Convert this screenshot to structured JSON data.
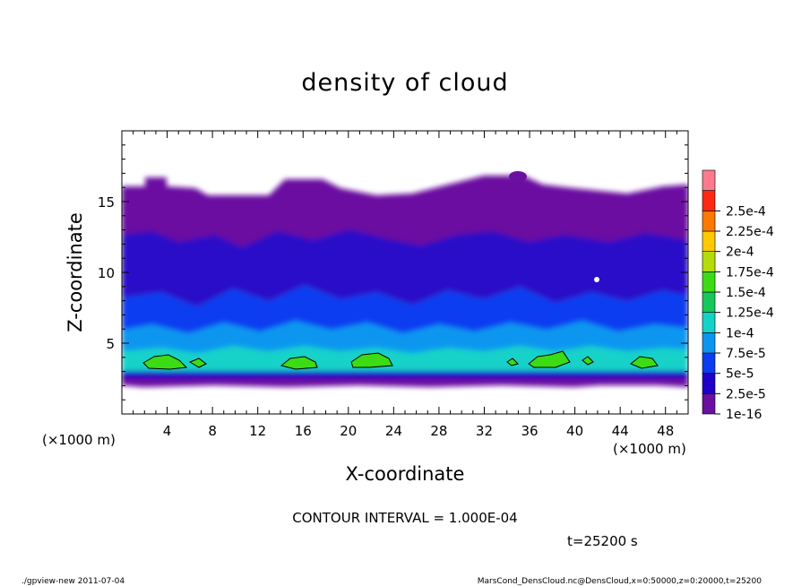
{
  "chart_data": {
    "type": "heatmap",
    "title": "density of cloud",
    "xlabel": "X-coordinate",
    "ylabel": "Z-coordinate",
    "x_unit": "(×1000 m)",
    "y_unit": "(×1000 m)",
    "xlim": [
      0,
      50
    ],
    "ylim": [
      0,
      20
    ],
    "x_ticks": [
      4,
      8,
      12,
      16,
      20,
      24,
      28,
      32,
      36,
      40,
      44,
      48
    ],
    "y_ticks": [
      5,
      10,
      15
    ],
    "colorbar": {
      "labels": [
        "1e-16",
        "2.5e-5",
        "5e-5",
        "7.5e-5",
        "1e-4",
        "1.25e-4",
        "1.5e-4",
        "1.75e-4",
        "2e-4",
        "2.25e-4",
        "2.5e-4"
      ],
      "colors": [
        "#6a0fa0",
        "#1e00c8",
        "#0a3cf0",
        "#0a96f0",
        "#14d2c8",
        "#14c85a",
        "#3cdc14",
        "#b4dc0a",
        "#ffc800",
        "#ff7800",
        "#ff2814",
        "#ff7a8c"
      ]
    },
    "approx_field_rows": [
      {
        "z_range": [
          16,
          20
        ],
        "value": "no cloud"
      },
      {
        "z_range": [
          12,
          16
        ],
        "value": "1e-16 to 2.5e-5"
      },
      {
        "z_range": [
          6,
          12
        ],
        "value": "2.5e-5 to 5e-5"
      },
      {
        "z_range": [
          4.5,
          6
        ],
        "value": "5e-5 to 7.5e-5"
      },
      {
        "z_range": [
          3,
          4.5
        ],
        "value": "7.5e-5 to 1.25e-4"
      },
      {
        "z_range": [
          2,
          3
        ],
        "value": "1e-16 to 2.5e-5"
      },
      {
        "z_range": [
          0,
          2
        ],
        "value": "no cloud"
      }
    ],
    "contour_interval_label": "CONTOUR INTERVAL = 1.000E-04",
    "time_label": "t=25200 s"
  },
  "footer": {
    "left": "./gpview-new   2011-07-04",
    "right": "MarsCond_DensCloud.nc@DensCloud,x=0:50000,z=0:20000,t=25200"
  }
}
